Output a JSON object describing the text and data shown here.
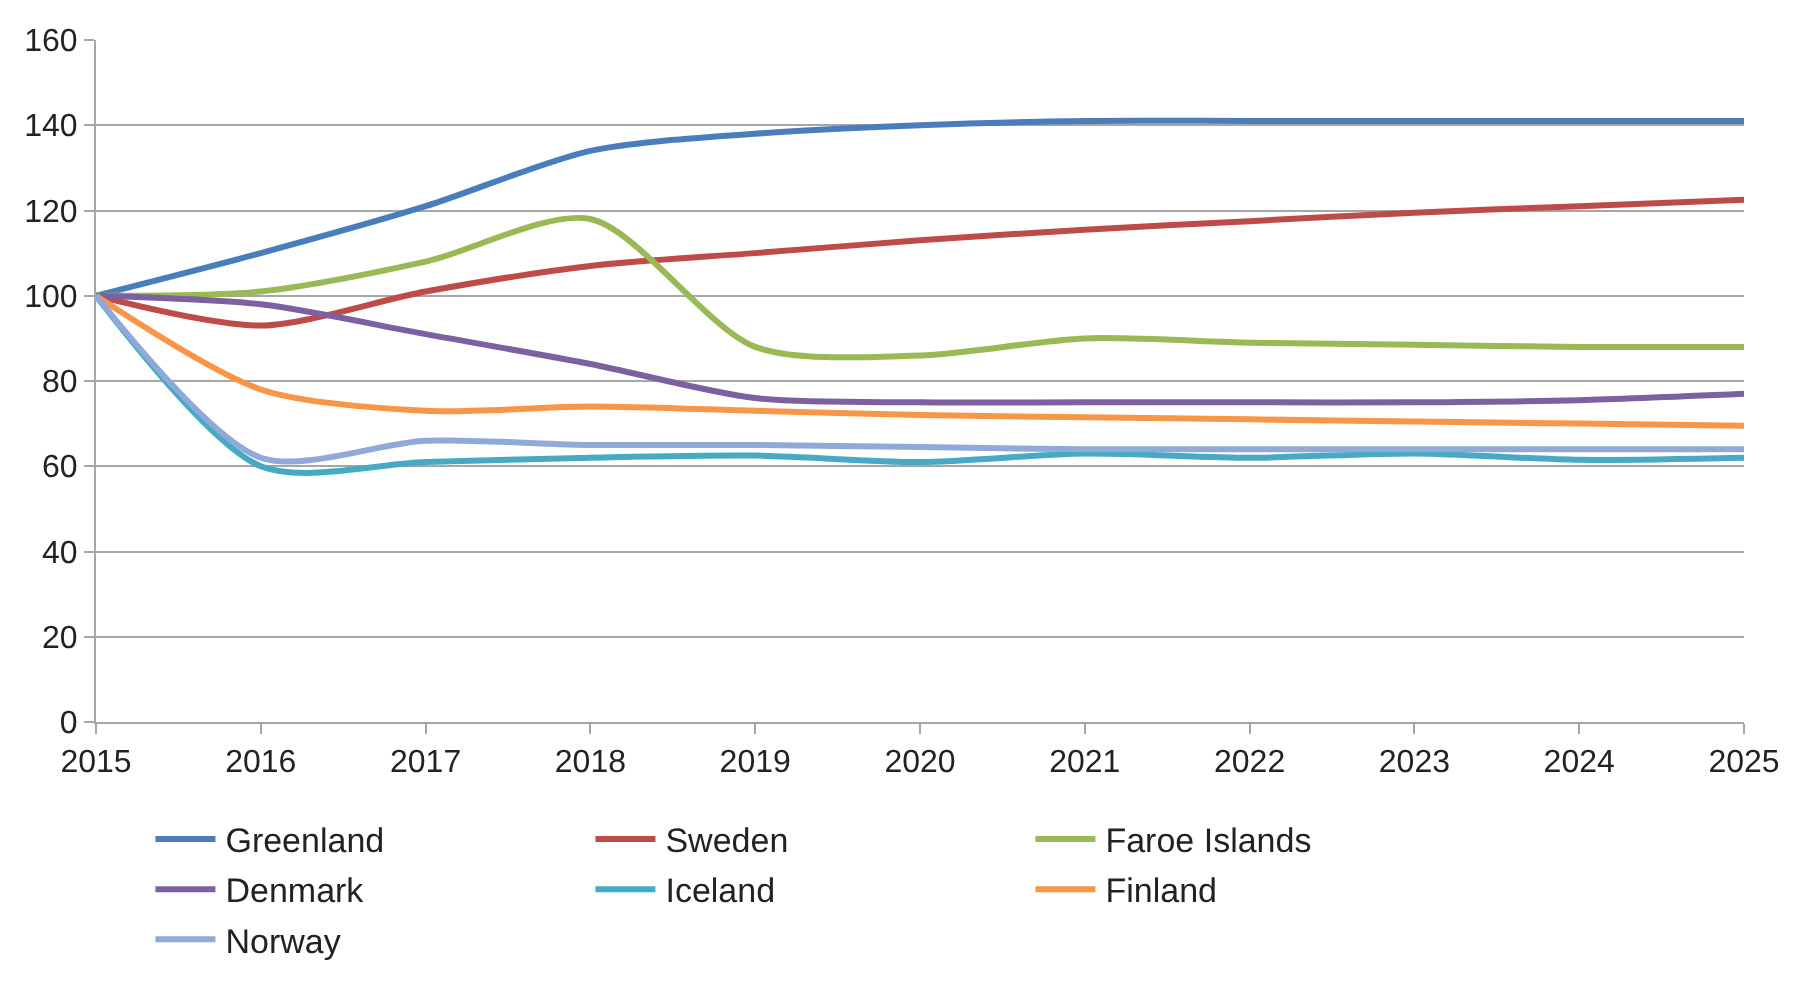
{
  "chart_data": {
    "type": "line",
    "x": [
      2015,
      2016,
      2017,
      2018,
      2019,
      2020,
      2021,
      2022,
      2023,
      2024,
      2025
    ],
    "xlim": [
      2015,
      2025
    ],
    "xticks": [
      2015,
      2016,
      2017,
      2018,
      2019,
      2020,
      2021,
      2022,
      2023,
      2024,
      2025
    ],
    "ylim": [
      0,
      160
    ],
    "yticks": [
      0,
      20,
      40,
      60,
      80,
      100,
      120,
      140,
      160
    ],
    "grid": "y",
    "legend": "bottom",
    "marker": "none",
    "line_style": "solid",
    "series": [
      {
        "name": "Greenland",
        "color": "#4a7ebb",
        "values": [
          100,
          110,
          121,
          134,
          138,
          140,
          141,
          141,
          141,
          141,
          141
        ]
      },
      {
        "name": "Sweden",
        "color": "#be4b48",
        "values": [
          100,
          93,
          101,
          107,
          110,
          113,
          115.5,
          117.5,
          119.5,
          121,
          122.5
        ]
      },
      {
        "name": "Faroe Islands",
        "color": "#98b954",
        "values": [
          100,
          101,
          108,
          118,
          88,
          86,
          90,
          89,
          88.5,
          88,
          88
        ]
      },
      {
        "name": "Denmark",
        "color": "#7d60a0",
        "values": [
          100,
          98,
          91,
          84,
          76,
          75,
          75,
          75,
          75,
          75.5,
          77
        ]
      },
      {
        "name": "Iceland",
        "color": "#46aac5",
        "values": [
          100,
          60,
          61,
          62,
          62.5,
          61,
          63,
          62,
          63,
          61.5,
          62
        ]
      },
      {
        "name": "Finland",
        "color": "#f79646",
        "values": [
          100,
          78,
          73,
          74,
          73,
          72,
          71.5,
          71,
          70.5,
          70,
          69.5
        ]
      },
      {
        "name": "Norway",
        "color": "#8fa9d8",
        "values": [
          100,
          62,
          66,
          65,
          65,
          64.5,
          64,
          64,
          64,
          64,
          64
        ]
      }
    ]
  }
}
